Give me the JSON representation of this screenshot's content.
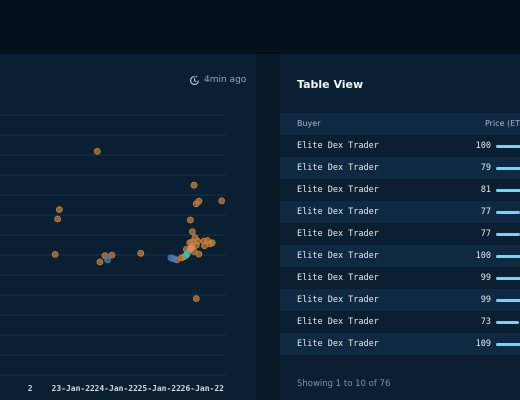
{
  "chart": {
    "updated": "4min ago",
    "clock_icon": "refresh-clock-icon",
    "chart_data": {
      "type": "scatter",
      "title": "",
      "xlabel": "",
      "ylabel": "",
      "x_ticks": [
        "2",
        "23-Jan-22",
        "24-Jan-22",
        "25-Jan-22",
        "26-Jan-22"
      ],
      "x_range": [
        -0.7,
        4.55
      ],
      "y_range": [
        0,
        1
      ],
      "grid": true,
      "series": [
        {
          "color": "#c8823c",
          "points": [
            {
              "x": 1.56,
              "y": 0.842
            },
            {
              "x": 0.68,
              "y": 0.62
            },
            {
              "x": 0.64,
              "y": 0.584
            },
            {
              "x": 0.58,
              "y": 0.449
            },
            {
              "x": 1.62,
              "y": 0.42
            },
            {
              "x": 1.74,
              "y": 0.444
            },
            {
              "x": 1.9,
              "y": 0.446
            },
            {
              "x": 2.57,
              "y": 0.453
            },
            {
              "x": 3.41,
              "y": 0.428
            },
            {
              "x": 3.52,
              "y": 0.436
            },
            {
              "x": 3.81,
              "y": 0.713
            },
            {
              "x": 3.86,
              "y": 0.642
            },
            {
              "x": 3.92,
              "y": 0.652
            },
            {
              "x": 4.45,
              "y": 0.653
            },
            {
              "x": 3.72,
              "y": 0.58
            },
            {
              "x": 3.77,
              "y": 0.536
            },
            {
              "x": 3.83,
              "y": 0.513
            },
            {
              "x": 3.71,
              "y": 0.493
            },
            {
              "x": 3.86,
              "y": 0.484
            },
            {
              "x": 3.89,
              "y": 0.499
            },
            {
              "x": 4.04,
              "y": 0.5
            },
            {
              "x": 4.12,
              "y": 0.502
            },
            {
              "x": 4.18,
              "y": 0.489
            },
            {
              "x": 4.23,
              "y": 0.493
            },
            {
              "x": 3.63,
              "y": 0.468
            },
            {
              "x": 3.74,
              "y": 0.474
            },
            {
              "x": 3.81,
              "y": 0.46
            },
            {
              "x": 3.92,
              "y": 0.45
            },
            {
              "x": 4.05,
              "y": 0.482
            },
            {
              "x": 3.58,
              "y": 0.44
            },
            {
              "x": 3.86,
              "y": 0.28
            },
            {
              "x": 3.76,
              "y": 0.496
            }
          ]
        },
        {
          "color": "#e8875e",
          "points": [
            {
              "x": 3.72,
              "y": 0.468
            },
            {
              "x": 3.75,
              "y": 0.476
            }
          ]
        },
        {
          "color": "#4f78c9",
          "points": [
            {
              "x": 1.8,
              "y": 0.428
            },
            {
              "x": 3.27,
              "y": 0.436
            },
            {
              "x": 3.33,
              "y": 0.432
            }
          ]
        },
        {
          "color": "#3fbfae",
          "points": [
            {
              "x": 3.63,
              "y": 0.446
            },
            {
              "x": 3.65,
              "y": 0.452
            }
          ]
        }
      ]
    }
  },
  "table": {
    "title": "Table View",
    "columns": {
      "buyer": "Buyer",
      "price": "Price (ET"
    },
    "max_price": 109,
    "rows": [
      {
        "buyer": "Elite Dex Trader",
        "price": 100
      },
      {
        "buyer": "Elite Dex Trader",
        "price": 79
      },
      {
        "buyer": "Elite Dex Trader",
        "price": 81
      },
      {
        "buyer": "Elite Dex Trader",
        "price": 77
      },
      {
        "buyer": "Elite Dex Trader",
        "price": 77
      },
      {
        "buyer": "Elite Dex Trader",
        "price": 100
      },
      {
        "buyer": "Elite Dex Trader",
        "price": 99
      },
      {
        "buyer": "Elite Dex Trader",
        "price": 99
      },
      {
        "buyer": "Elite Dex Trader",
        "price": 73
      },
      {
        "buyer": "Elite Dex Trader",
        "price": 109
      }
    ],
    "footer": "Showing 1 to 10 of 76"
  }
}
